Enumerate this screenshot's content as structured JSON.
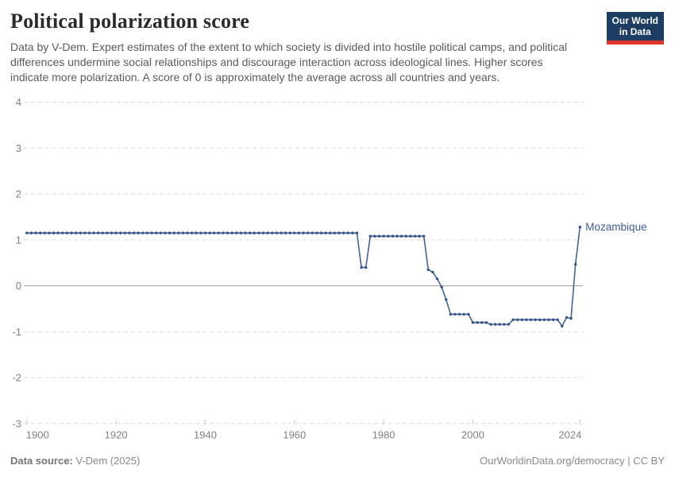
{
  "header": {
    "title": "Political polarization score",
    "subtitle": "Data by V-Dem. Expert estimates of the extent to which society is divided into hostile political camps, and political differences undermine social relationships and discourage interaction across ideological lines. Higher scores indicate more polarization. A score of 0 is approximately the average across all countries and years.",
    "logo": {
      "line1": "Our World",
      "line2": "in Data",
      "bg_color": "#1d3d63",
      "stripe_color": "#e2372b"
    }
  },
  "footer": {
    "source_label": "Data source:",
    "source_value": " V-Dem (2025)",
    "credit": "OurWorldinData.org/democracy | CC BY"
  },
  "chart_data": {
    "type": "line",
    "title": "Political polarization score",
    "xlabel": "",
    "ylabel": "",
    "xlim": [
      1900,
      2024
    ],
    "ylim": [
      -3,
      4
    ],
    "x_ticks": [
      1900,
      1920,
      1940,
      1960,
      1980,
      2000,
      2024
    ],
    "y_ticks": [
      4,
      3,
      2,
      1,
      0,
      -1,
      -2,
      -3
    ],
    "grid": "horizontal dashed, solid zero line",
    "legend_position": "end-of-line label",
    "colors": {
      "line": "#44629b",
      "marker": "#33538e",
      "label": "#3e5d96",
      "gridline": "#dedede",
      "zero_line": "#9e9e9e",
      "axis_text": "#818181"
    },
    "series": [
      {
        "name": "Mozambique",
        "points": [
          [
            1900,
            1.15
          ],
          [
            1901,
            1.15
          ],
          [
            1902,
            1.15
          ],
          [
            1903,
            1.15
          ],
          [
            1904,
            1.15
          ],
          [
            1905,
            1.15
          ],
          [
            1906,
            1.15
          ],
          [
            1907,
            1.15
          ],
          [
            1908,
            1.15
          ],
          [
            1909,
            1.15
          ],
          [
            1910,
            1.15
          ],
          [
            1911,
            1.15
          ],
          [
            1912,
            1.15
          ],
          [
            1913,
            1.15
          ],
          [
            1914,
            1.15
          ],
          [
            1915,
            1.15
          ],
          [
            1916,
            1.15
          ],
          [
            1917,
            1.15
          ],
          [
            1918,
            1.15
          ],
          [
            1919,
            1.15
          ],
          [
            1920,
            1.15
          ],
          [
            1921,
            1.15
          ],
          [
            1922,
            1.15
          ],
          [
            1923,
            1.15
          ],
          [
            1924,
            1.15
          ],
          [
            1925,
            1.15
          ],
          [
            1926,
            1.15
          ],
          [
            1927,
            1.15
          ],
          [
            1928,
            1.15
          ],
          [
            1929,
            1.15
          ],
          [
            1930,
            1.15
          ],
          [
            1931,
            1.15
          ],
          [
            1932,
            1.15
          ],
          [
            1933,
            1.15
          ],
          [
            1934,
            1.15
          ],
          [
            1935,
            1.15
          ],
          [
            1936,
            1.15
          ],
          [
            1937,
            1.15
          ],
          [
            1938,
            1.15
          ],
          [
            1939,
            1.15
          ],
          [
            1940,
            1.15
          ],
          [
            1941,
            1.15
          ],
          [
            1942,
            1.15
          ],
          [
            1943,
            1.15
          ],
          [
            1944,
            1.15
          ],
          [
            1945,
            1.15
          ],
          [
            1946,
            1.15
          ],
          [
            1947,
            1.15
          ],
          [
            1948,
            1.15
          ],
          [
            1949,
            1.15
          ],
          [
            1950,
            1.15
          ],
          [
            1951,
            1.15
          ],
          [
            1952,
            1.15
          ],
          [
            1953,
            1.15
          ],
          [
            1954,
            1.15
          ],
          [
            1955,
            1.15
          ],
          [
            1956,
            1.15
          ],
          [
            1957,
            1.15
          ],
          [
            1958,
            1.15
          ],
          [
            1959,
            1.15
          ],
          [
            1960,
            1.15
          ],
          [
            1961,
            1.15
          ],
          [
            1962,
            1.15
          ],
          [
            1963,
            1.15
          ],
          [
            1964,
            1.15
          ],
          [
            1965,
            1.15
          ],
          [
            1966,
            1.15
          ],
          [
            1967,
            1.15
          ],
          [
            1968,
            1.15
          ],
          [
            1969,
            1.15
          ],
          [
            1970,
            1.15
          ],
          [
            1971,
            1.15
          ],
          [
            1972,
            1.15
          ],
          [
            1973,
            1.15
          ],
          [
            1974,
            1.15
          ],
          [
            1975,
            0.4
          ],
          [
            1976,
            0.4
          ],
          [
            1977,
            1.08
          ],
          [
            1978,
            1.08
          ],
          [
            1979,
            1.08
          ],
          [
            1980,
            1.08
          ],
          [
            1981,
            1.08
          ],
          [
            1982,
            1.08
          ],
          [
            1983,
            1.08
          ],
          [
            1984,
            1.08
          ],
          [
            1985,
            1.08
          ],
          [
            1986,
            1.08
          ],
          [
            1987,
            1.08
          ],
          [
            1988,
            1.08
          ],
          [
            1989,
            1.08
          ],
          [
            1990,
            0.35
          ],
          [
            1991,
            0.3
          ],
          [
            1992,
            0.15
          ],
          [
            1993,
            -0.03
          ],
          [
            1994,
            -0.3
          ],
          [
            1995,
            -0.62
          ],
          [
            1996,
            -0.62
          ],
          [
            1997,
            -0.62
          ],
          [
            1998,
            -0.62
          ],
          [
            1999,
            -0.62
          ],
          [
            2000,
            -0.8
          ],
          [
            2001,
            -0.8
          ],
          [
            2002,
            -0.8
          ],
          [
            2003,
            -0.8
          ],
          [
            2004,
            -0.84
          ],
          [
            2005,
            -0.84
          ],
          [
            2006,
            -0.84
          ],
          [
            2007,
            -0.84
          ],
          [
            2008,
            -0.84
          ],
          [
            2009,
            -0.74
          ],
          [
            2010,
            -0.74
          ],
          [
            2011,
            -0.74
          ],
          [
            2012,
            -0.74
          ],
          [
            2013,
            -0.74
          ],
          [
            2014,
            -0.74
          ],
          [
            2015,
            -0.74
          ],
          [
            2016,
            -0.74
          ],
          [
            2017,
            -0.74
          ],
          [
            2018,
            -0.74
          ],
          [
            2019,
            -0.74
          ],
          [
            2020,
            -0.88
          ],
          [
            2021,
            -0.69
          ],
          [
            2022,
            -0.71
          ],
          [
            2023,
            0.47
          ],
          [
            2024,
            1.28
          ]
        ]
      }
    ]
  }
}
